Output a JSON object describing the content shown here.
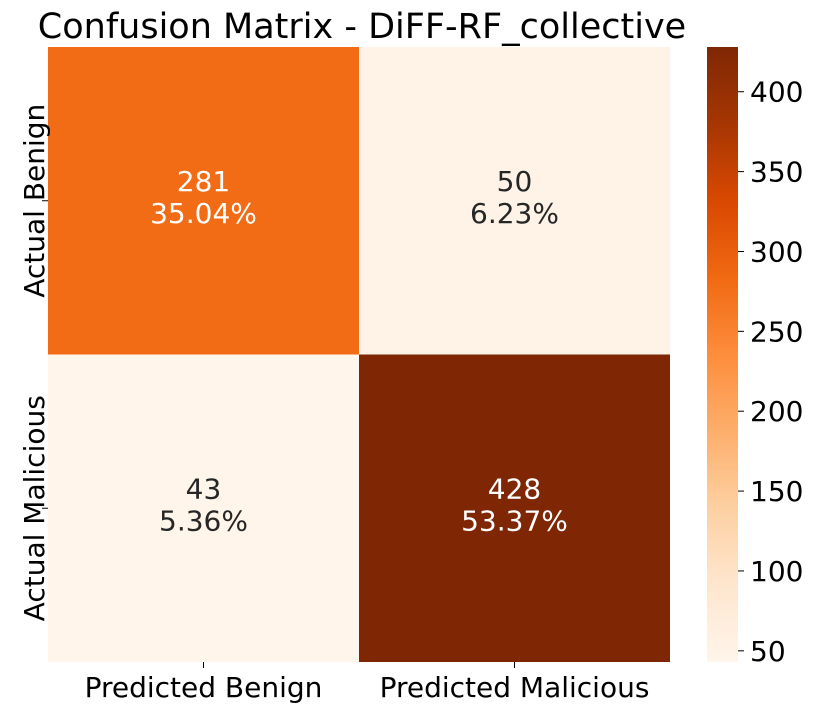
{
  "chart_data": {
    "type": "heatmap",
    "title": "Confusion Matrix - DiFF-RF_collective",
    "x_categories": [
      "Predicted Benign",
      "Predicted Malicious"
    ],
    "y_categories": [
      "Actual Benign",
      "Actual Malicious"
    ],
    "cells": [
      [
        {
          "count": "281",
          "percent": "35.04%",
          "value": 281
        },
        {
          "count": "50",
          "percent": "6.23%",
          "value": 50
        }
      ],
      [
        {
          "count": "43",
          "percent": "5.36%",
          "value": 43
        },
        {
          "count": "428",
          "percent": "53.37%",
          "value": 428
        }
      ]
    ],
    "colorbar": {
      "min": 43,
      "max": 428,
      "ticks": [
        "50",
        "100",
        "150",
        "200",
        "250",
        "300",
        "350",
        "400"
      ],
      "colormap": "Oranges"
    },
    "xlabel": "",
    "ylabel": "",
    "legend": "colorbar-right"
  }
}
